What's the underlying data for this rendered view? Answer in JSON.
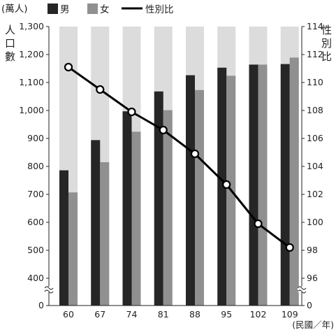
{
  "chart_data": {
    "type": "bar+line",
    "legend": {
      "unit": "(萬人)",
      "male": "男",
      "female": "女",
      "ratio": "性別比"
    },
    "left_axis_title": [
      "人",
      "口",
      "數"
    ],
    "right_axis_title": [
      "性",
      "別",
      "比"
    ],
    "x_unit_label": "(民國／年)",
    "categories": [
      "60",
      "67",
      "74",
      "81",
      "88",
      "95",
      "102",
      "109"
    ],
    "left_ylim": [
      400,
      1300
    ],
    "left_ticks": [
      "0",
      "400",
      "500",
      "600",
      "700",
      "800",
      "900",
      "1,000",
      "1,100",
      "1,200",
      "1,300"
    ],
    "right_ylim": [
      96,
      114
    ],
    "right_ticks": [
      "0",
      "96",
      "98",
      "100",
      "102",
      "104",
      "106",
      "108",
      "110",
      "112",
      "114"
    ],
    "series": [
      {
        "name": "男",
        "type": "bar",
        "values": [
          786,
          894,
          997,
          1068,
          1126,
          1153,
          1164,
          1166
        ]
      },
      {
        "name": "女",
        "type": "bar",
        "values": [
          707,
          815,
          924,
          1001,
          1073,
          1124,
          1164,
          1189
        ]
      },
      {
        "name": "性別比",
        "type": "line",
        "values": [
          111.1,
          109.5,
          107.9,
          106.6,
          104.9,
          102.7,
          99.9,
          98.2
        ]
      }
    ],
    "colors": {
      "male": "#262626",
      "female": "#909090",
      "background_band": "#dcdcdc",
      "line": "#000000"
    }
  }
}
